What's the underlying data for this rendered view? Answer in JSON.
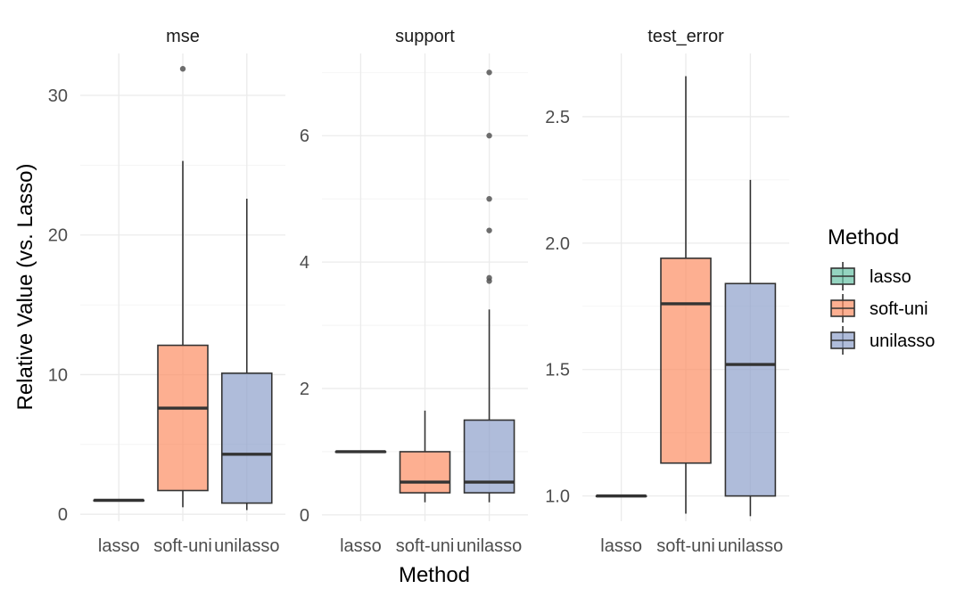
{
  "chart_data": {
    "type": "boxplot",
    "xlabel": "Method",
    "ylabel": "Relative Value (vs. Lasso)",
    "categories": [
      "lasso",
      "soft-uni",
      "unilasso"
    ],
    "colors": {
      "lasso": "#66c2a5",
      "soft-uni": "#fc8d62",
      "unilasso": "#8da0cb"
    },
    "legend": {
      "title": "Method",
      "position": "right",
      "entries": [
        "lasso",
        "soft-uni",
        "unilasso"
      ]
    },
    "grid": true,
    "facets": [
      {
        "name": "mse",
        "ylim": [
          -0.5,
          33
        ],
        "yticks": [
          0,
          10,
          20,
          30
        ],
        "boxes": [
          {
            "method": "lasso",
            "min": 1.0,
            "q1": 1.0,
            "median": 1.0,
            "q3": 1.0,
            "max": 1.0,
            "outliers": []
          },
          {
            "method": "soft-uni",
            "min": 0.5,
            "q1": 1.7,
            "median": 7.6,
            "q3": 12.1,
            "max": 25.3,
            "outliers": [
              31.9
            ]
          },
          {
            "method": "unilasso",
            "min": 0.3,
            "q1": 0.8,
            "median": 4.3,
            "q3": 10.1,
            "max": 22.6,
            "outliers": []
          }
        ]
      },
      {
        "name": "support",
        "ylim": [
          -0.1,
          7.3
        ],
        "yticks": [
          0,
          2,
          4,
          6
        ],
        "boxes": [
          {
            "method": "lasso",
            "min": 1.0,
            "q1": 1.0,
            "median": 1.0,
            "q3": 1.0,
            "max": 1.0,
            "outliers": []
          },
          {
            "method": "soft-uni",
            "min": 0.2,
            "q1": 0.35,
            "median": 0.52,
            "q3": 1.0,
            "max": 1.65,
            "outliers": []
          },
          {
            "method": "unilasso",
            "min": 0.2,
            "q1": 0.35,
            "median": 0.52,
            "q3": 1.5,
            "max": 3.25,
            "outliers": [
              3.7,
              3.75,
              4.5,
              5.0,
              6.0,
              7.0
            ]
          }
        ]
      },
      {
        "name": "test_error",
        "ylim": [
          0.9,
          2.75
        ],
        "yticks": [
          1.0,
          1.5,
          2.0,
          2.5
        ],
        "boxes": [
          {
            "method": "lasso",
            "min": 1.0,
            "q1": 1.0,
            "median": 1.0,
            "q3": 1.0,
            "max": 1.0,
            "outliers": []
          },
          {
            "method": "soft-uni",
            "min": 0.93,
            "q1": 1.13,
            "median": 1.76,
            "q3": 1.94,
            "max": 2.66,
            "outliers": []
          },
          {
            "method": "unilasso",
            "min": 0.92,
            "q1": 1.0,
            "median": 1.52,
            "q3": 1.84,
            "max": 2.25,
            "outliers": []
          }
        ]
      }
    ]
  }
}
